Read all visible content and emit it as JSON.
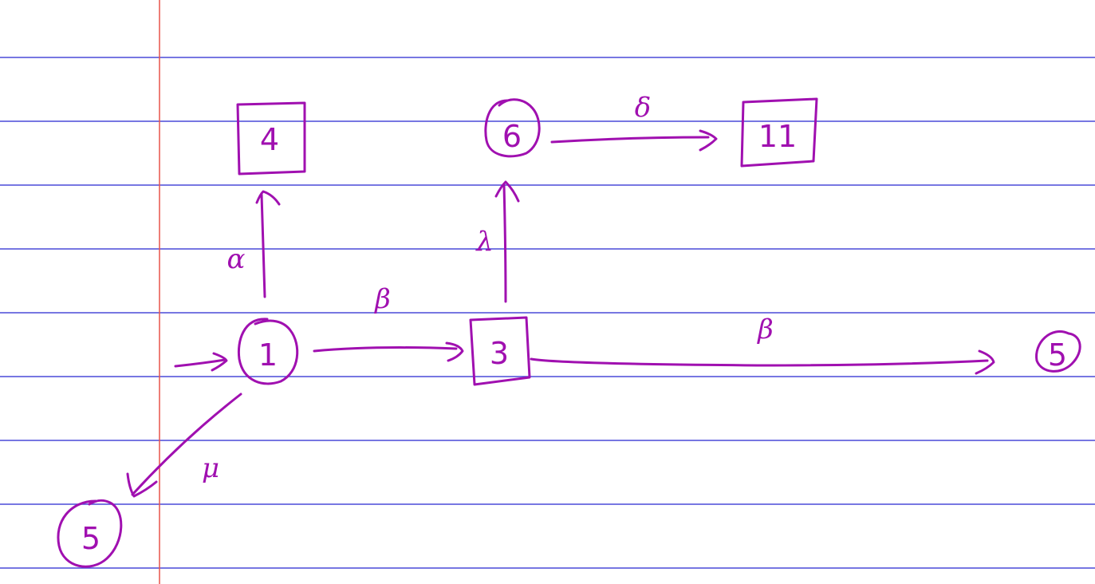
{
  "colors": {
    "paper": "#ffffff",
    "rule_line": "#4a4ad8",
    "margin_line": "#e8534a",
    "ink": "#a010b0"
  },
  "nodes": {
    "n1": {
      "label": "1",
      "shape": "circle"
    },
    "n3": {
      "label": "3",
      "shape": "square"
    },
    "n4": {
      "label": "4",
      "shape": "square"
    },
    "n5_left": {
      "label": "5",
      "shape": "circle"
    },
    "n5_right": {
      "label": "5",
      "shape": "circle"
    },
    "n6": {
      "label": "6",
      "shape": "circle"
    },
    "n11": {
      "label": "11",
      "shape": "square"
    }
  },
  "edges": {
    "e_1_4": {
      "label": "α"
    },
    "e_1_3": {
      "label": "β"
    },
    "e_3_6": {
      "label": "λ"
    },
    "e_6_11": {
      "label": "δ"
    },
    "e_3_5": {
      "label": "β"
    },
    "e_1_5": {
      "label": "μ"
    }
  }
}
